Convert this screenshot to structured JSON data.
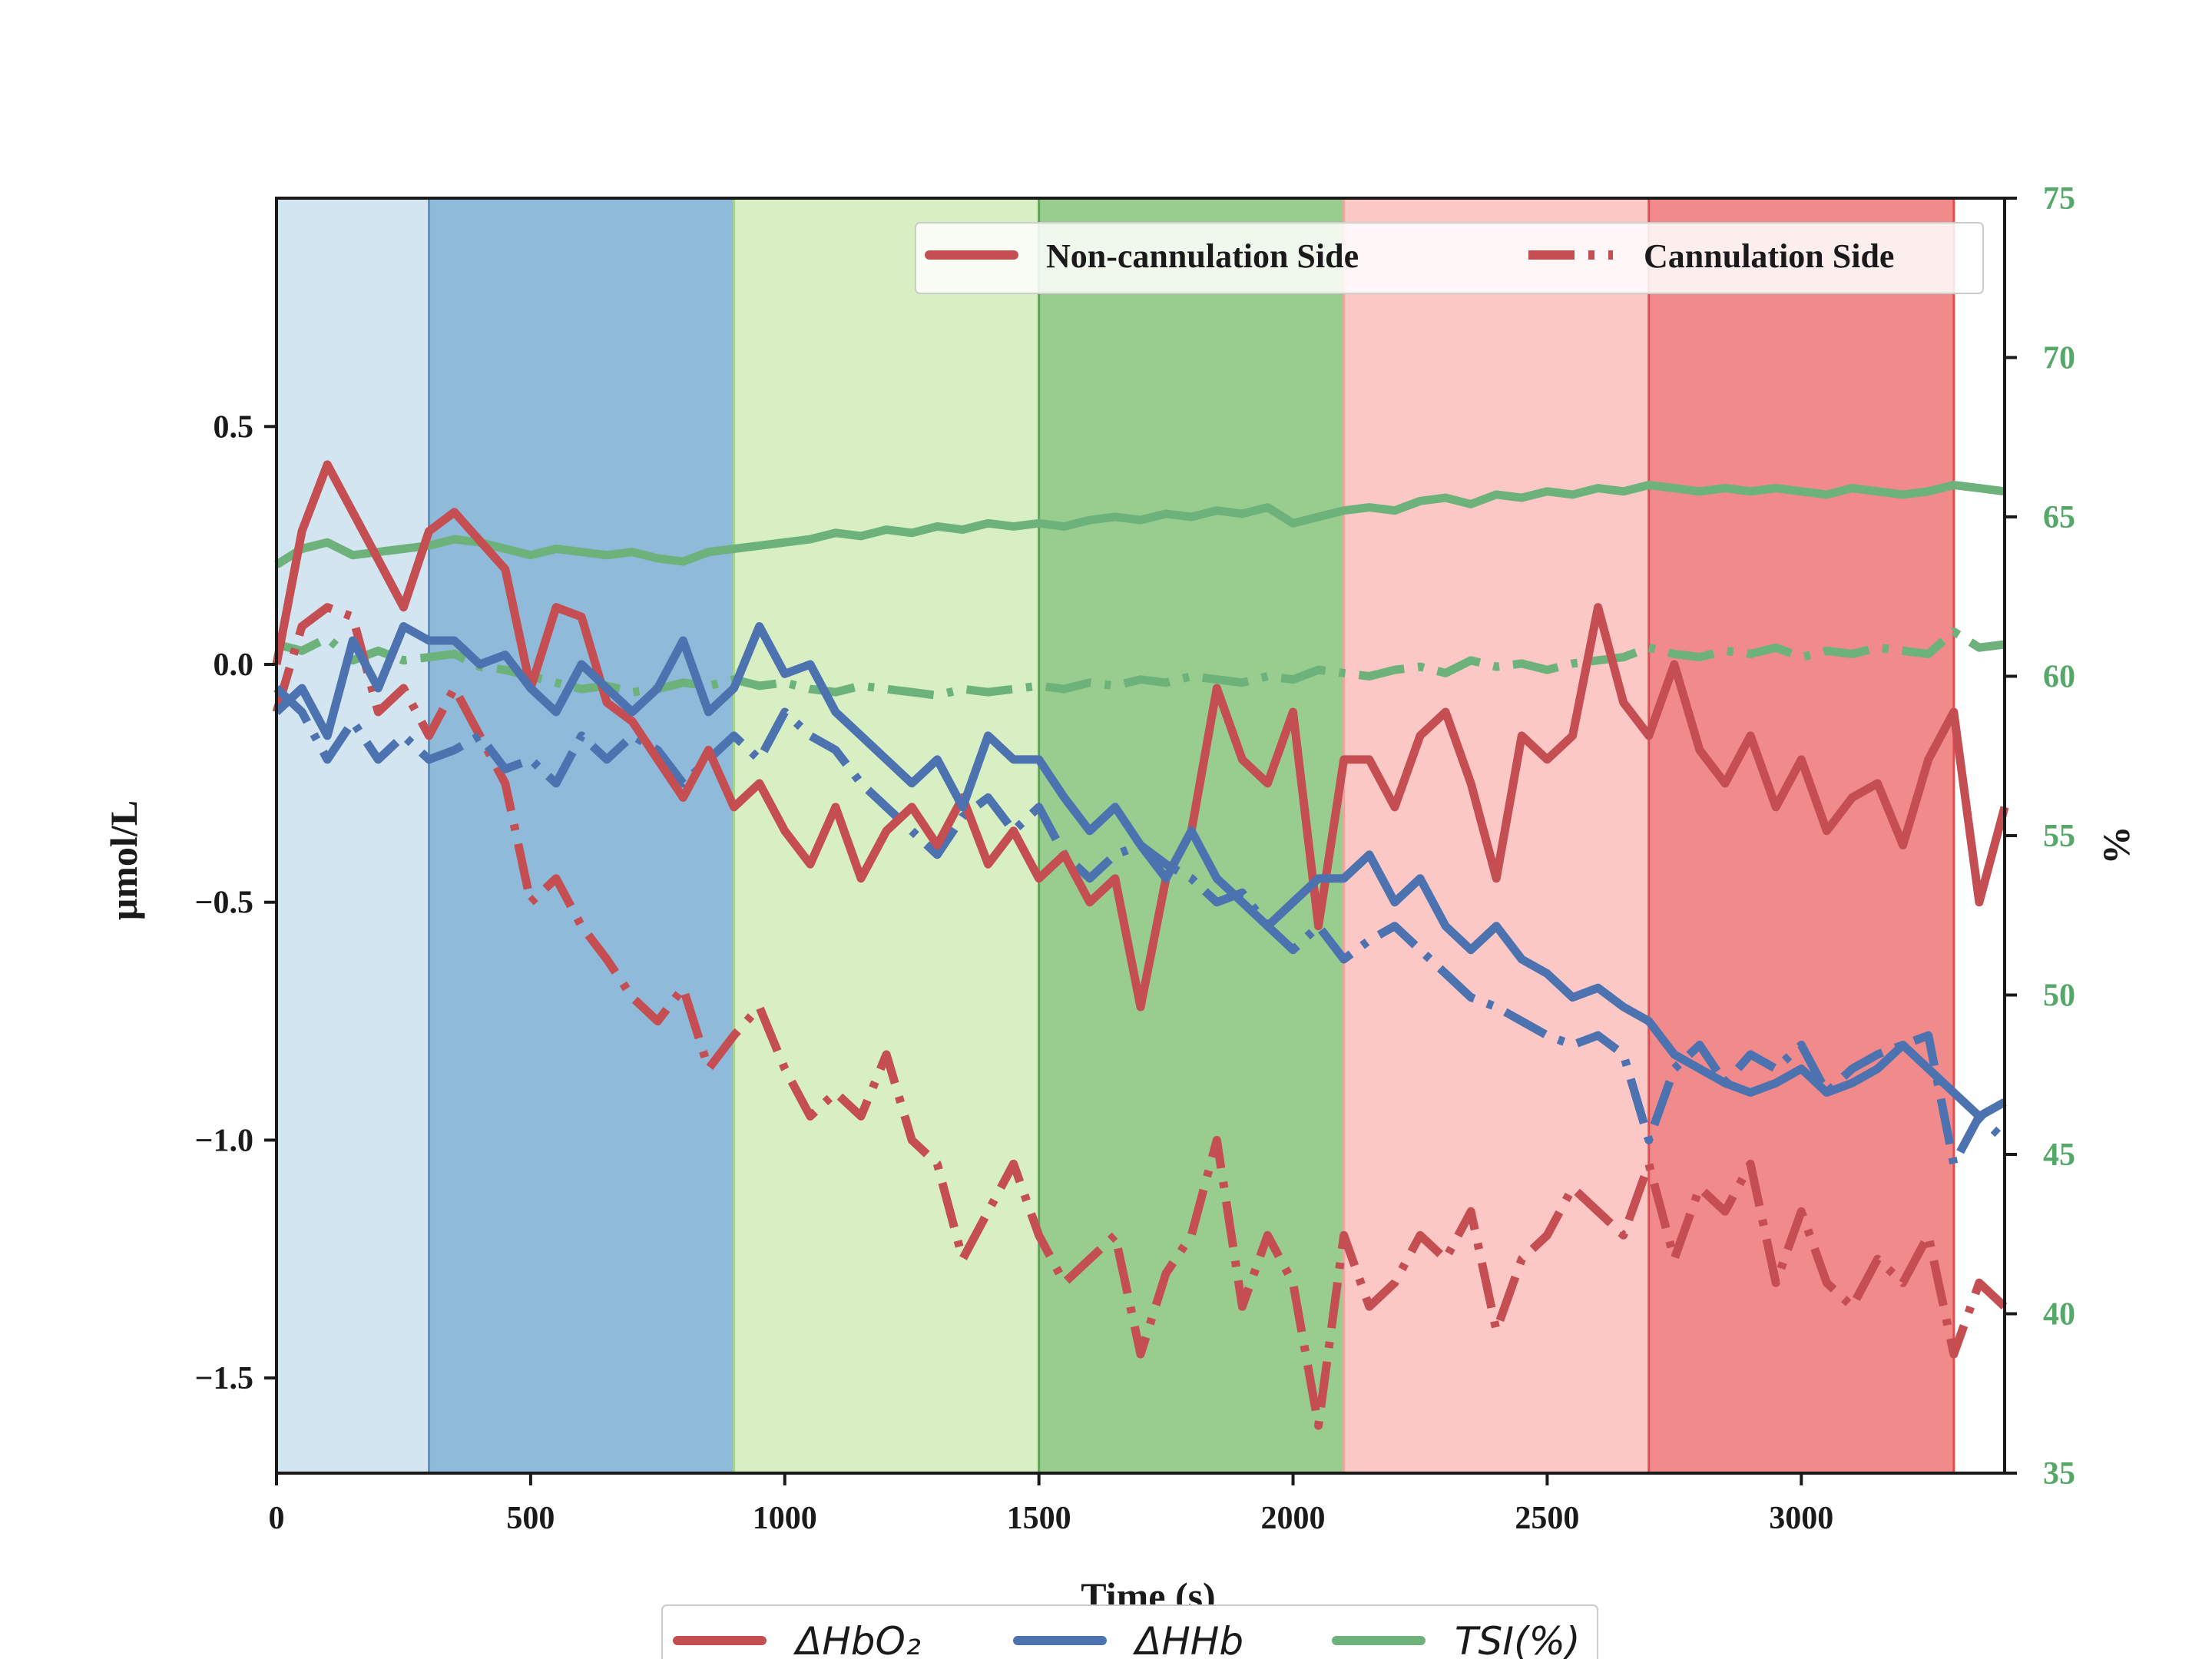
{
  "chart_data": {
    "type": "line",
    "xlabel": "Time (s)",
    "ylabel": "μmol/L",
    "ylabel_right": "%",
    "xlim": [
      0,
      3400
    ],
    "ylim": [
      -1.7,
      0.98
    ],
    "ylim_right": [
      35,
      75
    ],
    "x_ticks": [
      "0",
      "500",
      "1000",
      "1500",
      "2000",
      "2500",
      "3000"
    ],
    "x_tick_values": [
      0,
      500,
      1000,
      1500,
      2000,
      2500,
      3000
    ],
    "y_ticks": [
      "0.5",
      "0.0",
      "−0.5",
      "−1.0",
      "−1.5"
    ],
    "y_tick_values": [
      0.5,
      0.0,
      -0.5,
      -1.0,
      -1.5
    ],
    "y_right_ticks": [
      "75",
      "70",
      "65",
      "60",
      "55",
      "50",
      "45",
      "40",
      "35"
    ],
    "y_right_tick_values": [
      75,
      70,
      65,
      60,
      55,
      50,
      45,
      40,
      35
    ],
    "bands": [
      {
        "start": 0,
        "end": 300,
        "color": "#d2e5f0",
        "edge": "#d2e5f0"
      },
      {
        "start": 300,
        "end": 900,
        "color": "#8fbad9",
        "edge": "#5d93c2"
      },
      {
        "start": 900,
        "end": 1500,
        "color": "#d8efc4",
        "edge": "#a6d48b"
      },
      {
        "start": 1500,
        "end": 2100,
        "color": "#99cd90",
        "edge": "#5aa855"
      },
      {
        "start": 2100,
        "end": 2700,
        "color": "#fbc8c6",
        "edge": "#f5a3a1"
      },
      {
        "start": 2700,
        "end": 3300,
        "color": "#f08a8b",
        "edge": "#de5050"
      }
    ],
    "colors": {
      "hbo2": "#c44e52",
      "hhb": "#4c72b0",
      "tsi": "#6cb27a",
      "right_axis": "#55a868"
    },
    "legend_top": [
      {
        "label": "Non-cannulation Side",
        "style": "solid"
      },
      {
        "label": "Cannulation Side",
        "style": "dashdot"
      }
    ],
    "legend_bottom": [
      {
        "label": "ΔHbO₂",
        "color": "#c44e52"
      },
      {
        "label": "ΔHHb",
        "color": "#4c72b0"
      },
      {
        "label": "TSI(%)",
        "color": "#6cb27a"
      }
    ],
    "x": [
      0,
      50,
      100,
      150,
      200,
      250,
      300,
      350,
      400,
      450,
      500,
      550,
      600,
      650,
      700,
      750,
      800,
      850,
      900,
      950,
      1000,
      1050,
      1100,
      1150,
      1200,
      1250,
      1300,
      1350,
      1400,
      1450,
      1500,
      1550,
      1600,
      1650,
      1700,
      1750,
      1800,
      1850,
      1900,
      1950,
      2000,
      2050,
      2100,
      2150,
      2200,
      2250,
      2300,
      2350,
      2400,
      2450,
      2500,
      2550,
      2600,
      2650,
      2700,
      2750,
      2800,
      2850,
      2900,
      2950,
      3000,
      3050,
      3100,
      3150,
      3200,
      3250,
      3300,
      3350,
      3400
    ],
    "series": [
      {
        "key": "hbo2_non",
        "axis": "left",
        "style": "solid",
        "color": "#c44e52",
        "values": [
          0.0,
          0.28,
          0.42,
          0.32,
          0.22,
          0.12,
          0.28,
          0.32,
          0.26,
          0.2,
          -0.05,
          0.12,
          0.1,
          -0.08,
          -0.12,
          -0.2,
          -0.28,
          -0.18,
          -0.3,
          -0.25,
          -0.35,
          -0.42,
          -0.3,
          -0.45,
          -0.35,
          -0.3,
          -0.38,
          -0.28,
          -0.42,
          -0.35,
          -0.45,
          -0.4,
          -0.5,
          -0.45,
          -0.72,
          -0.45,
          -0.35,
          -0.05,
          -0.2,
          -0.25,
          -0.1,
          -0.55,
          -0.2,
          -0.2,
          -0.3,
          -0.15,
          -0.1,
          -0.25,
          -0.45,
          -0.15,
          -0.2,
          -0.15,
          0.12,
          -0.08,
          -0.15,
          0.0,
          -0.18,
          -0.25,
          -0.15,
          -0.3,
          -0.2,
          -0.35,
          -0.28,
          -0.25,
          -0.38,
          -0.2,
          -0.1,
          -0.5,
          -0.3
        ]
      },
      {
        "key": "hbo2_can",
        "axis": "left",
        "style": "dashdot",
        "color": "#c44e52",
        "values": [
          -0.1,
          0.08,
          0.12,
          0.1,
          -0.1,
          -0.05,
          -0.15,
          -0.05,
          -0.15,
          -0.25,
          -0.5,
          -0.45,
          -0.55,
          -0.62,
          -0.7,
          -0.75,
          -0.68,
          -0.85,
          -0.78,
          -0.72,
          -0.85,
          -0.95,
          -0.9,
          -0.95,
          -0.82,
          -1.0,
          -1.05,
          -1.25,
          -1.15,
          -1.05,
          -1.2,
          -1.3,
          -1.25,
          -1.2,
          -1.45,
          -1.28,
          -1.2,
          -1.0,
          -1.35,
          -1.2,
          -1.3,
          -1.6,
          -1.2,
          -1.35,
          -1.3,
          -1.2,
          -1.25,
          -1.15,
          -1.4,
          -1.25,
          -1.2,
          -1.1,
          -1.15,
          -1.2,
          -1.05,
          -1.25,
          -1.1,
          -1.15,
          -1.05,
          -1.3,
          -1.15,
          -1.3,
          -1.35,
          -1.25,
          -1.3,
          -1.2,
          -1.45,
          -1.3,
          -1.35
        ]
      },
      {
        "key": "hhb_non",
        "axis": "left",
        "style": "solid",
        "color": "#4c72b0",
        "values": [
          -0.1,
          -0.05,
          -0.15,
          0.05,
          -0.05,
          0.08,
          0.05,
          0.05,
          0.0,
          0.02,
          -0.05,
          -0.1,
          0.0,
          -0.05,
          -0.1,
          -0.05,
          0.05,
          -0.1,
          -0.05,
          0.08,
          -0.02,
          0.0,
          -0.1,
          -0.15,
          -0.2,
          -0.25,
          -0.2,
          -0.3,
          -0.15,
          -0.2,
          -0.2,
          -0.28,
          -0.35,
          -0.3,
          -0.38,
          -0.45,
          -0.35,
          -0.45,
          -0.5,
          -0.55,
          -0.5,
          -0.45,
          -0.45,
          -0.4,
          -0.5,
          -0.45,
          -0.55,
          -0.6,
          -0.55,
          -0.62,
          -0.65,
          -0.7,
          -0.68,
          -0.72,
          -0.75,
          -0.82,
          -0.85,
          -0.88,
          -0.9,
          -0.88,
          -0.85,
          -0.9,
          -0.88,
          -0.85,
          -0.8,
          -0.85,
          -0.9,
          -0.95,
          -0.92
        ]
      },
      {
        "key": "hhb_can",
        "axis": "left",
        "style": "dashdot",
        "color": "#4c72b0",
        "values": [
          -0.05,
          -0.1,
          -0.2,
          -0.12,
          -0.2,
          -0.15,
          -0.2,
          -0.18,
          -0.15,
          -0.22,
          -0.2,
          -0.25,
          -0.15,
          -0.2,
          -0.15,
          -0.18,
          -0.25,
          -0.2,
          -0.15,
          -0.2,
          -0.1,
          -0.15,
          -0.18,
          -0.25,
          -0.3,
          -0.35,
          -0.4,
          -0.32,
          -0.28,
          -0.35,
          -0.3,
          -0.4,
          -0.45,
          -0.4,
          -0.38,
          -0.42,
          -0.45,
          -0.5,
          -0.48,
          -0.55,
          -0.6,
          -0.55,
          -0.62,
          -0.58,
          -0.55,
          -0.6,
          -0.65,
          -0.7,
          -0.72,
          -0.75,
          -0.78,
          -0.8,
          -0.78,
          -0.82,
          -1.0,
          -0.85,
          -0.8,
          -0.88,
          -0.82,
          -0.85,
          -0.8,
          -0.9,
          -0.85,
          -0.82,
          -0.8,
          -0.78,
          -1.05,
          -0.95,
          -1.0
        ]
      },
      {
        "key": "tsi_non",
        "axis": "right",
        "style": "solid",
        "color": "#6cb27a",
        "values": [
          63.5,
          64.0,
          64.2,
          63.8,
          63.9,
          64.0,
          64.1,
          64.3,
          64.2,
          64.0,
          63.8,
          64.0,
          63.9,
          63.8,
          63.9,
          63.7,
          63.6,
          63.9,
          64.0,
          64.1,
          64.2,
          64.3,
          64.5,
          64.4,
          64.6,
          64.5,
          64.7,
          64.6,
          64.8,
          64.7,
          64.8,
          64.7,
          64.9,
          65.0,
          64.9,
          65.1,
          65.0,
          65.2,
          65.1,
          65.3,
          64.8,
          65.0,
          65.2,
          65.3,
          65.2,
          65.5,
          65.6,
          65.4,
          65.7,
          65.6,
          65.8,
          65.7,
          65.9,
          65.8,
          66.0,
          65.9,
          65.8,
          65.9,
          65.8,
          65.9,
          65.8,
          65.7,
          65.9,
          65.8,
          65.7,
          65.8,
          66.0,
          65.9,
          65.8
        ]
      },
      {
        "key": "tsi_can",
        "axis": "right",
        "style": "dashdot",
        "color": "#6cb27a",
        "values": [
          61.0,
          60.8,
          61.2,
          60.5,
          60.8,
          60.5,
          60.6,
          60.7,
          60.3,
          60.2,
          60.0,
          59.8,
          59.6,
          59.7,
          59.5,
          59.6,
          59.8,
          59.7,
          59.9,
          59.7,
          59.8,
          59.6,
          59.5,
          59.7,
          59.6,
          59.5,
          59.4,
          59.6,
          59.5,
          59.6,
          59.7,
          59.6,
          59.8,
          59.7,
          59.9,
          59.8,
          60.0,
          59.9,
          59.8,
          60.0,
          59.9,
          60.2,
          60.1,
          60.0,
          60.2,
          60.3,
          60.1,
          60.5,
          60.3,
          60.4,
          60.2,
          60.4,
          60.5,
          60.6,
          60.9,
          60.7,
          60.6,
          60.8,
          60.7,
          60.9,
          60.6,
          60.8,
          60.7,
          60.9,
          60.8,
          60.7,
          61.4,
          60.9,
          61.0
        ]
      }
    ]
  }
}
